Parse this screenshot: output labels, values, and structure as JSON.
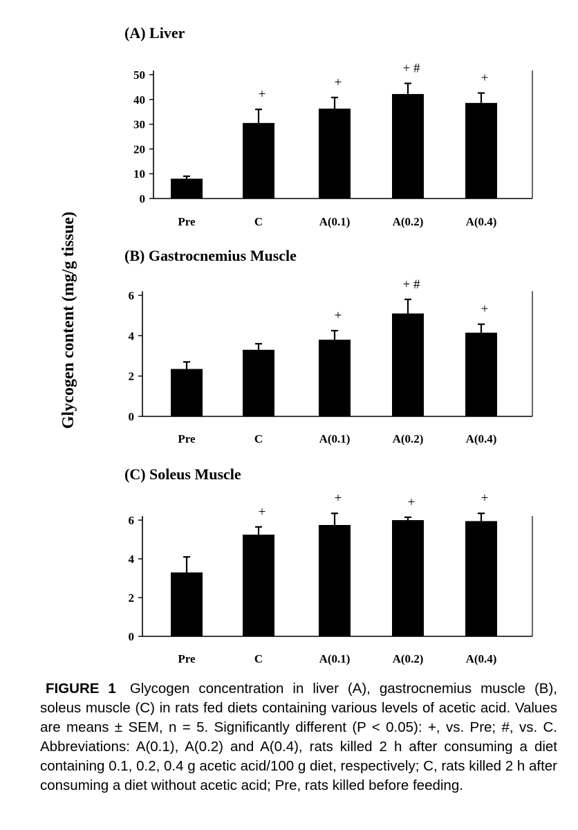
{
  "figure": {
    "y_axis_label": "Glycogen content (mg/g tissue)",
    "caption_label": "FIGURE 1",
    "caption_text": "Glycogen concentration in liver (A), gastrocnemius muscle (B), soleus muscle (C) in rats fed diets containing various levels of acetic acid. Values are means ± SEM, n = 5. Significantly different (P < 0.05): +, vs. Pre; #, vs. C. Abbreviations: A(0.1), A(0.2) and A(0.4), rats killed 2 h after consuming a diet containing 0.1, 0.2, 0.4 g acetic acid/100 g diet, respectively; C, rats killed 2 h after consuming a diet without acetic acid; Pre, rats killed before feeding."
  },
  "chart_data": [
    {
      "type": "bar",
      "title": "(A) Liver",
      "ylabel": "Glycogen content (mg/g tissue)",
      "categories": [
        "Pre",
        "C",
        "A(0.1)",
        "A(0.2)",
        "A(0.4)"
      ],
      "values": [
        8,
        30.5,
        36.3,
        42.2,
        38.6
      ],
      "errors": [
        1.0,
        5.5,
        4.5,
        4.3,
        4.0
      ],
      "significance": [
        "",
        "+",
        "+",
        "+ #",
        "+"
      ],
      "ylim": [
        0,
        50
      ],
      "yticks": [
        "0",
        "10",
        "20",
        "30",
        "40",
        "50"
      ],
      "bar_color": "#000000"
    },
    {
      "type": "bar",
      "title": "(B) Gastrocnemius Muscle",
      "ylabel": "Glycogen content (mg/g tissue)",
      "categories": [
        "Pre",
        "C",
        "A(0.1)",
        "A(0.2)",
        "A(0.4)"
      ],
      "values": [
        2.35,
        3.3,
        3.8,
        5.1,
        4.15
      ],
      "errors": [
        0.35,
        0.3,
        0.45,
        0.7,
        0.42
      ],
      "significance": [
        "",
        "",
        "+",
        "+ #",
        "+"
      ],
      "ylim": [
        0,
        6
      ],
      "yticks": [
        "0",
        "2",
        "4",
        "6"
      ],
      "bar_color": "#000000"
    },
    {
      "type": "bar",
      "title": "(C) Soleus Muscle",
      "ylabel": "Glycogen content (mg/g tissue)",
      "categories": [
        "Pre",
        "C",
        "A(0.1)",
        "A(0.2)",
        "A(0.4)"
      ],
      "values": [
        3.3,
        5.25,
        5.75,
        6.0,
        5.95
      ],
      "errors": [
        0.8,
        0.4,
        0.6,
        0.15,
        0.4
      ],
      "significance": [
        "",
        "+",
        "+",
        "+",
        "+"
      ],
      "ylim": [
        0,
        6.5
      ],
      "yticks": [
        "0",
        "2",
        "4",
        "6"
      ],
      "bar_color": "#000000"
    }
  ]
}
